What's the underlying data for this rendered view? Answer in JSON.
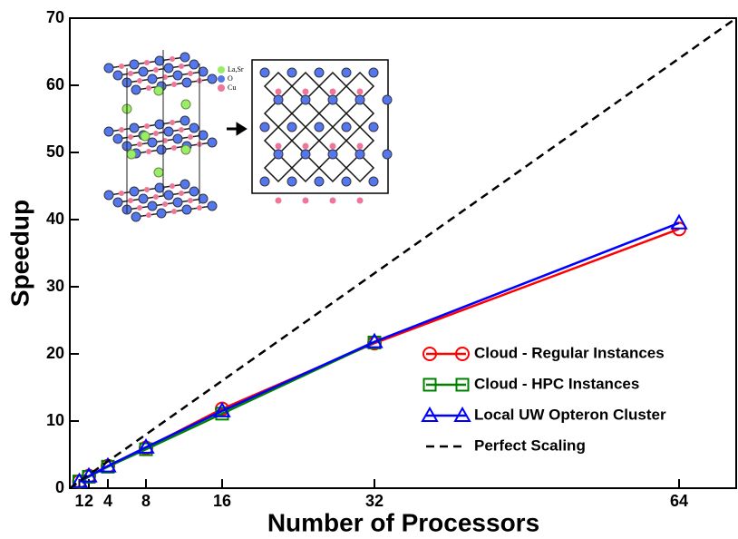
{
  "chart_data": {
    "type": "line",
    "x_label": "Number of Processors",
    "y_label": "Speedup",
    "xlim": [
      0,
      70
    ],
    "ylim": [
      0,
      70
    ],
    "xticks": [
      1,
      2,
      4,
      8,
      16,
      32,
      64
    ],
    "yticks": [
      0,
      10,
      20,
      30,
      40,
      50,
      60,
      70
    ],
    "x": [
      1,
      2,
      4,
      8,
      16,
      32,
      64
    ],
    "series": [
      {
        "name": "Cloud - Regular Instances",
        "color": "#ff0000",
        "marker": "circle",
        "values": [
          1,
          1.8,
          3.3,
          6,
          11.8,
          21.6,
          38.6
        ]
      },
      {
        "name": "Cloud - HPC Instances",
        "color": "#008000",
        "marker": "square",
        "values": [
          1,
          1.7,
          3.2,
          5.8,
          11.1,
          21.7,
          null
        ]
      },
      {
        "name": "Local UW Opteron Cluster",
        "color": "#0000ff",
        "marker": "triangle",
        "values": [
          1,
          1.8,
          3.3,
          6.1,
          11.5,
          21.8,
          39.5
        ]
      },
      {
        "name": "Perfect Scaling",
        "color": "#000000",
        "dashed": true,
        "x": [
          0,
          70
        ],
        "values": [
          0,
          70
        ]
      }
    ],
    "inset": {
      "legend": [
        "La,Sr",
        "O",
        "Cu"
      ]
    }
  }
}
